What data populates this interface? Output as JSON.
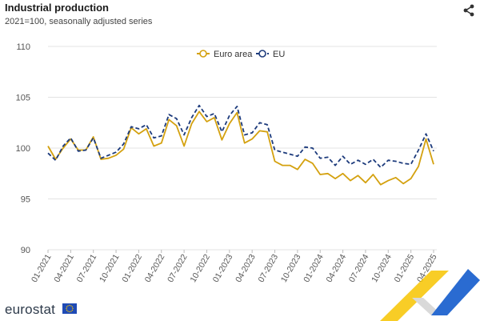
{
  "header": {
    "title": "Industrial production",
    "subtitle": "2021=100, seasonally adjusted series"
  },
  "footer": {
    "brand": "eurostat"
  },
  "icons": {
    "share": "share-icon",
    "flag": "eu-flag-icon"
  },
  "colors": {
    "euro_area": "#d4a10f",
    "eu": "#1d3b7c",
    "grid": "#e3e3e3",
    "brand_yellow": "#f7c400",
    "brand_blue": "#2a6bd1"
  },
  "chart_data": {
    "type": "line",
    "title": "Industrial production",
    "subtitle": "2021=100, seasonally adjusted series",
    "xlabel": "",
    "ylabel": "",
    "ylim": [
      90,
      110
    ],
    "yticks": [
      90,
      95,
      100,
      105,
      110
    ],
    "grid": true,
    "legend_position": "top-center",
    "x": [
      "01-2021",
      "02-2021",
      "03-2021",
      "04-2021",
      "05-2021",
      "06-2021",
      "07-2021",
      "08-2021",
      "09-2021",
      "10-2021",
      "11-2021",
      "12-2021",
      "01-2022",
      "02-2022",
      "03-2022",
      "04-2022",
      "05-2022",
      "06-2022",
      "07-2022",
      "08-2022",
      "09-2022",
      "10-2022",
      "11-2022",
      "12-2022",
      "01-2023",
      "02-2023",
      "03-2023",
      "04-2023",
      "05-2023",
      "06-2023",
      "07-2023",
      "08-2023",
      "09-2023",
      "10-2023",
      "11-2023",
      "12-2023",
      "01-2024",
      "02-2024",
      "03-2024",
      "04-2024",
      "05-2024",
      "06-2024",
      "07-2024",
      "08-2024",
      "09-2024",
      "10-2024",
      "11-2024",
      "12-2024",
      "01-2025",
      "02-2025",
      "03-2025",
      "04-2025"
    ],
    "xtick_labels": [
      "01-2021",
      "04-2021",
      "07-2021",
      "10-2021",
      "01-2022",
      "04-2022",
      "07-2022",
      "10-2022",
      "01-2023",
      "04-2023",
      "07-2023",
      "10-2023",
      "01-2024",
      "04-2024",
      "07-2024",
      "10-2024",
      "01-2025",
      "04-2025"
    ],
    "series": [
      {
        "name": "Euro area",
        "style": "solid",
        "values": [
          100.2,
          98.9,
          100.0,
          100.9,
          99.8,
          99.8,
          101.1,
          98.9,
          99.0,
          99.3,
          99.9,
          102.0,
          101.4,
          101.9,
          100.2,
          100.5,
          102.8,
          102.2,
          100.2,
          102.4,
          103.6,
          102.6,
          103.0,
          100.8,
          102.4,
          103.5,
          100.5,
          100.9,
          101.7,
          101.6,
          98.7,
          98.3,
          98.3,
          97.9,
          98.9,
          98.5,
          97.4,
          97.5,
          97.0,
          97.5,
          96.8,
          97.3,
          96.6,
          97.4,
          96.4,
          96.8,
          97.1,
          96.5,
          97.0,
          98.2,
          100.9,
          98.4
        ]
      },
      {
        "name": "EU",
        "style": "dashed",
        "values": [
          99.5,
          98.8,
          100.2,
          101.0,
          99.7,
          99.8,
          101.0,
          99.0,
          99.3,
          99.6,
          100.4,
          102.1,
          101.9,
          102.3,
          101.0,
          101.2,
          103.3,
          102.9,
          101.3,
          103.0,
          104.2,
          103.1,
          103.4,
          101.6,
          103.2,
          104.1,
          101.3,
          101.5,
          102.5,
          102.3,
          99.8,
          99.6,
          99.4,
          99.2,
          100.1,
          100.0,
          99.0,
          99.1,
          98.3,
          99.2,
          98.4,
          98.8,
          98.4,
          98.9,
          98.1,
          98.8,
          98.7,
          98.5,
          98.4,
          99.8,
          101.4,
          99.7
        ]
      }
    ]
  }
}
